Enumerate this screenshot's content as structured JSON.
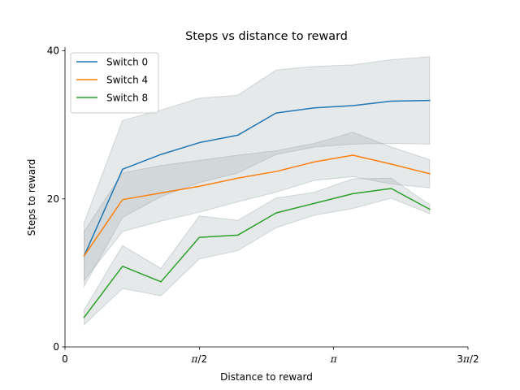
{
  "chart_data": {
    "type": "line",
    "title": "Steps vs distance to reward",
    "xlabel": "Distance to reward",
    "ylabel": "Steps to reward",
    "xlim": [
      0,
      4.7124
    ],
    "ylim": [
      0,
      40.5
    ],
    "xticks": [
      {
        "value": 0,
        "parts": [
          {
            "t": "0",
            "it": false
          }
        ]
      },
      {
        "value": 1.5708,
        "parts": [
          {
            "t": "π",
            "it": true
          },
          {
            "t": "/2",
            "it": false
          }
        ]
      },
      {
        "value": 3.1416,
        "parts": [
          {
            "t": "π",
            "it": true
          }
        ]
      },
      {
        "value": 4.7124,
        "parts": [
          {
            "t": "3",
            "it": false
          },
          {
            "t": "π",
            "it": true
          },
          {
            "t": "/2",
            "it": false
          }
        ]
      }
    ],
    "yticks": [
      {
        "value": 0,
        "label": "0"
      },
      {
        "value": 20,
        "label": "20"
      },
      {
        "value": 40,
        "label": "40"
      }
    ],
    "grid": false,
    "legend_position": "top-left",
    "band_color": "#8e9ba0",
    "band_opacity": 0.22,
    "x": [
      0.224,
      0.673,
      1.122,
      1.571,
      2.02,
      2.468,
      2.917,
      3.366,
      3.815,
      4.264
    ],
    "series": [
      {
        "name": "Switch 0",
        "color": "#1f77b4",
        "values": [
          12.3,
          24.0,
          26.0,
          27.6,
          28.6,
          31.6,
          32.3,
          32.6,
          33.2,
          33.3
        ],
        "lower": [
          8.2,
          17.5,
          20.3,
          22.2,
          23.5,
          26.0,
          27.0,
          27.4,
          27.5,
          27.4
        ],
        "upper": [
          16.8,
          30.6,
          32.0,
          33.6,
          34.0,
          37.4,
          37.9,
          38.1,
          38.8,
          39.2
        ]
      },
      {
        "name": "Switch 4",
        "color": "#ff7f0e",
        "values": [
          12.3,
          19.9,
          20.8,
          21.7,
          22.8,
          23.7,
          25.0,
          25.9,
          24.7,
          23.4
        ],
        "lower": [
          9.0,
          15.6,
          17.0,
          18.2,
          19.6,
          20.9,
          22.5,
          23.0,
          22.0,
          21.5
        ],
        "upper": [
          15.6,
          23.5,
          24.5,
          25.2,
          25.9,
          26.5,
          27.5,
          29.0,
          27.0,
          25.3
        ]
      },
      {
        "name": "Switch 8",
        "color": "#2ca02c",
        "values": [
          4.0,
          10.9,
          8.8,
          14.8,
          15.1,
          18.1,
          19.4,
          20.7,
          21.4,
          18.6
        ],
        "lower": [
          3.0,
          7.9,
          6.9,
          11.9,
          13.0,
          16.1,
          17.8,
          18.7,
          20.1,
          18.0
        ],
        "upper": [
          5.0,
          13.7,
          10.6,
          17.7,
          17.1,
          20.1,
          20.9,
          22.7,
          22.8,
          19.2
        ]
      }
    ]
  }
}
